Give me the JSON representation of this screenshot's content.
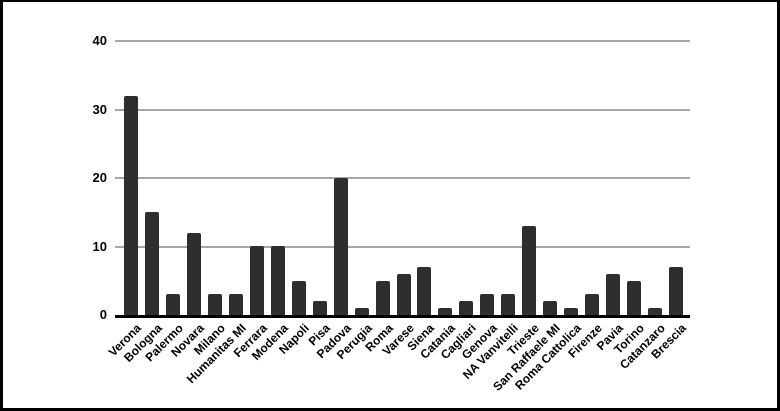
{
  "chart_data": {
    "type": "bar",
    "categories": [
      "Verona",
      "Bologna",
      "Palermo",
      "Novara",
      "Milano",
      "Humanitas MI",
      "Ferrara",
      "Modena",
      "Napoli",
      "Pisa",
      "Padova",
      "Perugia",
      "Roma",
      "Varese",
      "Siena",
      "Catania",
      "Cagliari",
      "Genova",
      "NA Vanvitelli",
      "Trieste",
      "San Raffaele MI",
      "Roma Cattolica",
      "Firenze",
      "Pavia",
      "Torino",
      "Catanzaro",
      "Brescia"
    ],
    "values": [
      32,
      15,
      3,
      12,
      3,
      3,
      10,
      10,
      5,
      2,
      20,
      1,
      5,
      6,
      7,
      1,
      2,
      3,
      3,
      13,
      2,
      1,
      3,
      6,
      5,
      1,
      7
    ],
    "yticks": [
      0,
      10,
      20,
      30,
      40
    ],
    "ylim": [
      0,
      40
    ],
    "grid": true,
    "legend": "none",
    "colors": {
      "bar": "#2e2e2e",
      "gridline": "#a6a6a6",
      "axis": "#000000",
      "text": "#000000",
      "background": "#ffffff",
      "frame_border": "#000000"
    }
  }
}
